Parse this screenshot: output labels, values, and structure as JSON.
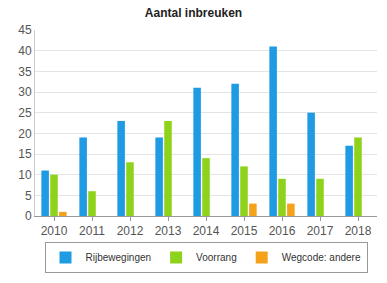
{
  "chart_data": {
    "type": "bar",
    "title": "Aantal inbreuken",
    "categories": [
      "2010",
      "2011",
      "2012",
      "2013",
      "2014",
      "2015",
      "2016",
      "2017",
      "2018"
    ],
    "series": [
      {
        "name": "Rijbewegingen",
        "color": "#1e9be2",
        "values": [
          11,
          19,
          23,
          19,
          31,
          32,
          41,
          25,
          17
        ]
      },
      {
        "name": "Voorrang",
        "color": "#8fd21b",
        "values": [
          10,
          6,
          13,
          23,
          14,
          12,
          9,
          9,
          19
        ]
      },
      {
        "name": "Wegcode: andere",
        "color": "#f5a21b",
        "values": [
          1,
          null,
          null,
          null,
          null,
          3,
          3,
          null,
          null
        ]
      }
    ],
    "ylim": [
      0,
      45
    ],
    "yticks": [
      0,
      5,
      10,
      15,
      20,
      25,
      30,
      35,
      40,
      45
    ],
    "grid": true,
    "legend": "bottom"
  }
}
